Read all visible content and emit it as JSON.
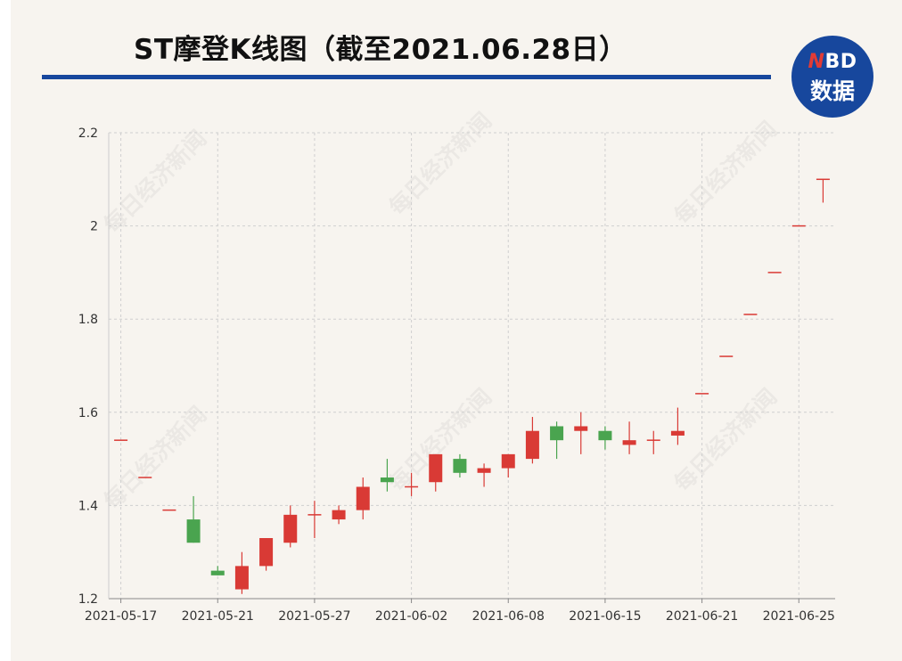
{
  "header": {
    "title": "ST摩登K线图（截至2021.06.28日）",
    "logo_top_prefix": "N",
    "logo_top_rest": "BD",
    "logo_bottom": "数据",
    "brand_color": "#17479d",
    "logo_accent": "#e23b35"
  },
  "watermark": "每日经济新闻",
  "chart_data": {
    "type": "candlestick",
    "title": "ST摩登K线图（截至2021.06.28日）",
    "xlabel": "",
    "ylabel": "",
    "ylim": [
      1.2,
      2.2
    ],
    "y_ticks": [
      1.2,
      1.4,
      1.6,
      1.8,
      2,
      2.2
    ],
    "y_tick_labels": [
      "1.2",
      "1.4",
      "1.6",
      "1.8",
      "2",
      "2.2"
    ],
    "x_tick_labels": [
      "2021-05-17",
      "2021-05-21",
      "2021-05-27",
      "2021-06-02",
      "2021-06-08",
      "2021-06-15",
      "2021-06-21",
      "2021-06-25"
    ],
    "grid": true,
    "up_color": "#d93a35",
    "down_color": "#4aa44f",
    "candles": [
      {
        "date": "2021-05-17",
        "open": 1.54,
        "close": 1.54,
        "high": 1.54,
        "low": 1.54
      },
      {
        "date": "2021-05-18",
        "open": 1.46,
        "close": 1.46,
        "high": 1.46,
        "low": 1.46
      },
      {
        "date": "2021-05-19",
        "open": 1.39,
        "close": 1.39,
        "high": 1.39,
        "low": 1.39
      },
      {
        "date": "2021-05-20",
        "open": 1.37,
        "close": 1.32,
        "high": 1.42,
        "low": 1.32
      },
      {
        "date": "2021-05-21",
        "open": 1.26,
        "close": 1.25,
        "high": 1.27,
        "low": 1.25
      },
      {
        "date": "2021-05-24",
        "open": 1.22,
        "close": 1.27,
        "high": 1.3,
        "low": 1.21
      },
      {
        "date": "2021-05-25",
        "open": 1.27,
        "close": 1.33,
        "high": 1.33,
        "low": 1.26
      },
      {
        "date": "2021-05-26",
        "open": 1.32,
        "close": 1.38,
        "high": 1.4,
        "low": 1.31
      },
      {
        "date": "2021-05-27",
        "open": 1.38,
        "close": 1.38,
        "high": 1.41,
        "low": 1.33
      },
      {
        "date": "2021-05-28",
        "open": 1.37,
        "close": 1.39,
        "high": 1.4,
        "low": 1.36
      },
      {
        "date": "2021-05-31",
        "open": 1.39,
        "close": 1.44,
        "high": 1.46,
        "low": 1.37
      },
      {
        "date": "2021-06-01",
        "open": 1.46,
        "close": 1.45,
        "high": 1.5,
        "low": 1.43
      },
      {
        "date": "2021-06-02",
        "open": 1.44,
        "close": 1.44,
        "high": 1.47,
        "low": 1.42
      },
      {
        "date": "2021-06-03",
        "open": 1.45,
        "close": 1.51,
        "high": 1.51,
        "low": 1.43
      },
      {
        "date": "2021-06-04",
        "open": 1.5,
        "close": 1.47,
        "high": 1.51,
        "low": 1.46
      },
      {
        "date": "2021-06-07",
        "open": 1.47,
        "close": 1.48,
        "high": 1.49,
        "low": 1.44
      },
      {
        "date": "2021-06-08",
        "open": 1.48,
        "close": 1.51,
        "high": 1.51,
        "low": 1.46
      },
      {
        "date": "2021-06-09",
        "open": 1.5,
        "close": 1.56,
        "high": 1.59,
        "low": 1.49
      },
      {
        "date": "2021-06-10",
        "open": 1.57,
        "close": 1.54,
        "high": 1.58,
        "low": 1.5
      },
      {
        "date": "2021-06-11",
        "open": 1.56,
        "close": 1.57,
        "high": 1.6,
        "low": 1.51
      },
      {
        "date": "2021-06-15",
        "open": 1.56,
        "close": 1.54,
        "high": 1.57,
        "low": 1.52
      },
      {
        "date": "2021-06-16",
        "open": 1.53,
        "close": 1.54,
        "high": 1.58,
        "low": 1.51
      },
      {
        "date": "2021-06-17",
        "open": 1.54,
        "close": 1.54,
        "high": 1.56,
        "low": 1.51
      },
      {
        "date": "2021-06-18",
        "open": 1.55,
        "close": 1.56,
        "high": 1.61,
        "low": 1.53
      },
      {
        "date": "2021-06-21",
        "open": 1.64,
        "close": 1.64,
        "high": 1.64,
        "low": 1.64
      },
      {
        "date": "2021-06-22",
        "open": 1.72,
        "close": 1.72,
        "high": 1.72,
        "low": 1.72
      },
      {
        "date": "2021-06-23",
        "open": 1.81,
        "close": 1.81,
        "high": 1.81,
        "low": 1.81
      },
      {
        "date": "2021-06-24",
        "open": 1.9,
        "close": 1.9,
        "high": 1.9,
        "low": 1.9
      },
      {
        "date": "2021-06-25",
        "open": 2.0,
        "close": 2.0,
        "high": 2.0,
        "low": 2.0
      },
      {
        "date": "2021-06-28",
        "open": 2.1,
        "close": 2.1,
        "high": 2.1,
        "low": 2.05
      }
    ]
  }
}
